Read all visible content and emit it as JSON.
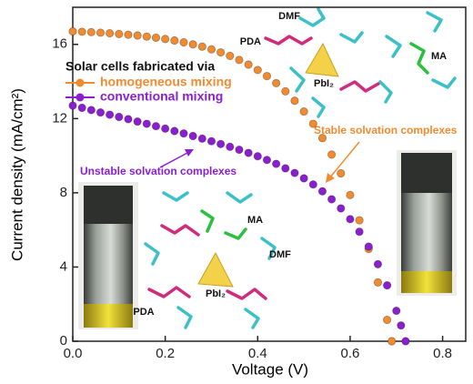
{
  "chart_data": {
    "type": "scatter",
    "xlabel": "Voltage (V)",
    "ylabel": "Current density (mA/cm²)",
    "legend_title": "Solar cells fabricated via",
    "xlim": [
      0,
      0.85
    ],
    "ylim": [
      0,
      18
    ],
    "xticks": [
      {
        "value": 0,
        "label": "0.0"
      },
      0.2,
      0.4,
      0.6,
      0.8
    ],
    "yticks": [
      0,
      4,
      8,
      12,
      16
    ],
    "legend": "upper left",
    "series": [
      {
        "name": "homogeneous mixing",
        "color": "#f28a30",
        "x": [
          0,
          0.02,
          0.04,
          0.06,
          0.08,
          0.1,
          0.12,
          0.14,
          0.16,
          0.18,
          0.2,
          0.22,
          0.24,
          0.26,
          0.28,
          0.3,
          0.32,
          0.34,
          0.36,
          0.38,
          0.4,
          0.42,
          0.44,
          0.46,
          0.48,
          0.5,
          0.52,
          0.54,
          0.56,
          0.58,
          0.6,
          0.62,
          0.64,
          0.66,
          0.68,
          0.69
        ],
        "values": [
          16.7,
          16.68,
          16.66,
          16.63,
          16.6,
          16.56,
          16.52,
          16.48,
          16.42,
          16.36,
          16.29,
          16.21,
          16.11,
          16.0,
          15.88,
          15.73,
          15.57,
          15.38,
          15.16,
          14.91,
          14.62,
          14.29,
          13.91,
          13.47,
          12.96,
          12.38,
          11.72,
          10.95,
          10.06,
          9.05,
          7.88,
          6.52,
          4.97,
          3.17,
          1.15,
          0
        ]
      },
      {
        "name": "conventional mixing",
        "color": "#8b1fd0",
        "x": [
          0,
          0.02,
          0.04,
          0.06,
          0.08,
          0.1,
          0.12,
          0.14,
          0.16,
          0.18,
          0.2,
          0.22,
          0.24,
          0.26,
          0.28,
          0.3,
          0.32,
          0.34,
          0.36,
          0.38,
          0.4,
          0.42,
          0.44,
          0.46,
          0.48,
          0.5,
          0.52,
          0.54,
          0.56,
          0.58,
          0.6,
          0.62,
          0.64,
          0.66,
          0.68,
          0.7,
          0.71,
          0.72
        ],
        "values": [
          12.7,
          12.58,
          12.46,
          12.33,
          12.21,
          12.09,
          11.97,
          11.84,
          11.72,
          11.59,
          11.46,
          11.33,
          11.2,
          11.06,
          10.92,
          10.78,
          10.63,
          10.48,
          10.32,
          10.15,
          9.97,
          9.77,
          9.56,
          9.32,
          9.07,
          8.78,
          8.45,
          8.08,
          7.65,
          7.16,
          6.58,
          5.9,
          5.1,
          4.15,
          3.01,
          1.64,
          0.85,
          0
        ]
      }
    ],
    "annotations": {
      "stable": "Stable solvation complexes",
      "unstable": "Unstable solvation complexes",
      "dmf_top": "DMF",
      "pda_top": "PDA",
      "pbi_top": "PbI₂",
      "ma_top": "MA",
      "ma_bottom": "MA",
      "dmf_bottom": "DMF",
      "pda_bottom": "PDA",
      "pbi_bottom": "PbI₂"
    }
  }
}
